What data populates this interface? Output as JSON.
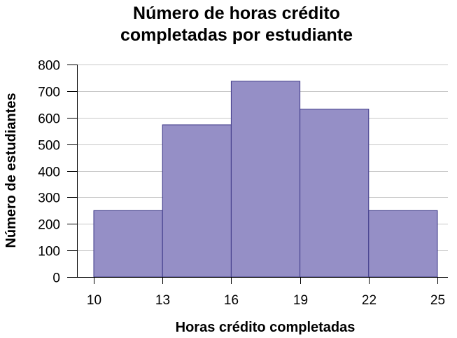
{
  "chart_data": {
    "type": "bar",
    "title_lines": [
      "Número de horas crédito",
      "completadas por estudiante"
    ],
    "xlabel": "Horas crédito completadas",
    "ylabel": "Número de estudiantes",
    "x_ticks": [
      10,
      13,
      16,
      19,
      22,
      25
    ],
    "x_tick_labels": [
      "10",
      "13",
      "16",
      "19",
      "22",
      "25"
    ],
    "y_ticks": [
      0,
      100,
      200,
      300,
      400,
      500,
      600,
      700,
      800
    ],
    "y_tick_labels": [
      "0",
      "100",
      "200",
      "300",
      "400",
      "500",
      "600",
      "700",
      "800"
    ],
    "xlim": [
      10,
      25
    ],
    "ylim": [
      0,
      800
    ],
    "grid": true,
    "bins": [
      {
        "start": 10,
        "end": 13,
        "value": 250
      },
      {
        "start": 13,
        "end": 16,
        "value": 573
      },
      {
        "start": 16,
        "end": 19,
        "value": 737
      },
      {
        "start": 19,
        "end": 22,
        "value": 632
      },
      {
        "start": 22,
        "end": 25,
        "value": 250
      }
    ],
    "colors": {
      "bar_fill": "#958fc6",
      "bar_stroke": "#3d3888",
      "grid": "#c8c8c8",
      "axis": "#000000"
    }
  }
}
